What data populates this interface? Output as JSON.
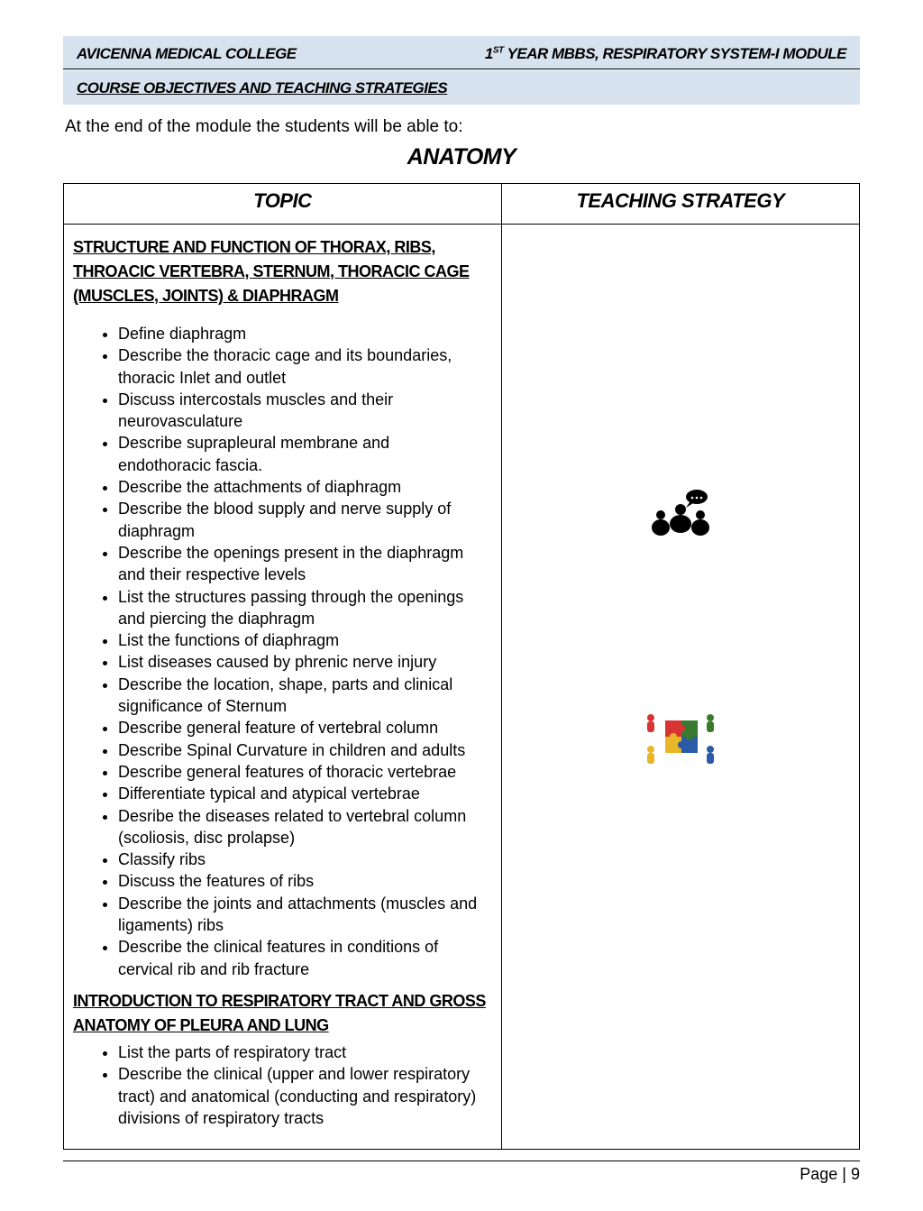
{
  "header": {
    "college": "AVICENNA MEDICAL COLLEGE",
    "module_prefix": "1",
    "module_sup": "ST",
    "module_rest": " YEAR MBBS,  RESPIRATORY SYSTEM-I MODULE"
  },
  "section_title": "COURSE OBJECTIVES AND TEACHING STRATEGIES",
  "intro": "At the end of the module the students will be able to:",
  "subject": "ANATOMY",
  "table": {
    "columns": [
      "TOPIC",
      "TEACHING STRATEGY"
    ],
    "heading1": "STRUCTURE AND FUNCTION OF THORAX, RIBS, THROACIC VERTEBRA, STERNUM, THORACIC CAGE (MUSCLES, JOINTS) & DIAPHRAGM",
    "objectives1": [
      "Define diaphragm",
      "Describe the thoracic cage and its boundaries, thoracic Inlet and outlet",
      "Discuss intercostals muscles and their neurovasculature",
      "Describe suprapleural membrane and endothoracic fascia.",
      "Describe the attachments of diaphragm",
      "Describe the blood supply and nerve supply of diaphragm",
      "Describe the openings present in the diaphragm and their respective levels",
      "List the structures passing through the openings and piercing the diaphragm",
      "List the functions of diaphragm",
      "List diseases caused by phrenic nerve injury",
      "Describe the location, shape, parts and clinical significance of Sternum",
      "Describe general feature of vertebral column",
      "Describe Spinal Curvature in children and adults",
      "Describe general features of thoracic vertebrae",
      "Differentiate typical and atypical vertebrae",
      "Desribe the diseases related to vertebral column (scoliosis, disc prolapse)",
      "Classify ribs",
      "Discuss the features of ribs",
      "Describe the joints and attachments (muscles and ligaments) ribs",
      "Describe the clinical features in conditions of cervical rib and rib fracture"
    ],
    "heading2": "INTRODUCTION TO RESPIRATORY TRACT AND GROSS ANATOMY OF PLEURA AND LUNG",
    "objectives2": [
      "List the parts of respiratory tract",
      "Describe the clinical (upper and lower respiratory tract) and anatomical (conducting and respiratory) divisions of respiratory tracts"
    ]
  },
  "icons": {
    "group_discussion": "group-discussion-icon",
    "teamwork_puzzle": "teamwork-puzzle-icon"
  },
  "footer": "Page |  9",
  "colors": {
    "header_bg": "#d6e2ee",
    "border": "#000000",
    "text": "#000000"
  }
}
